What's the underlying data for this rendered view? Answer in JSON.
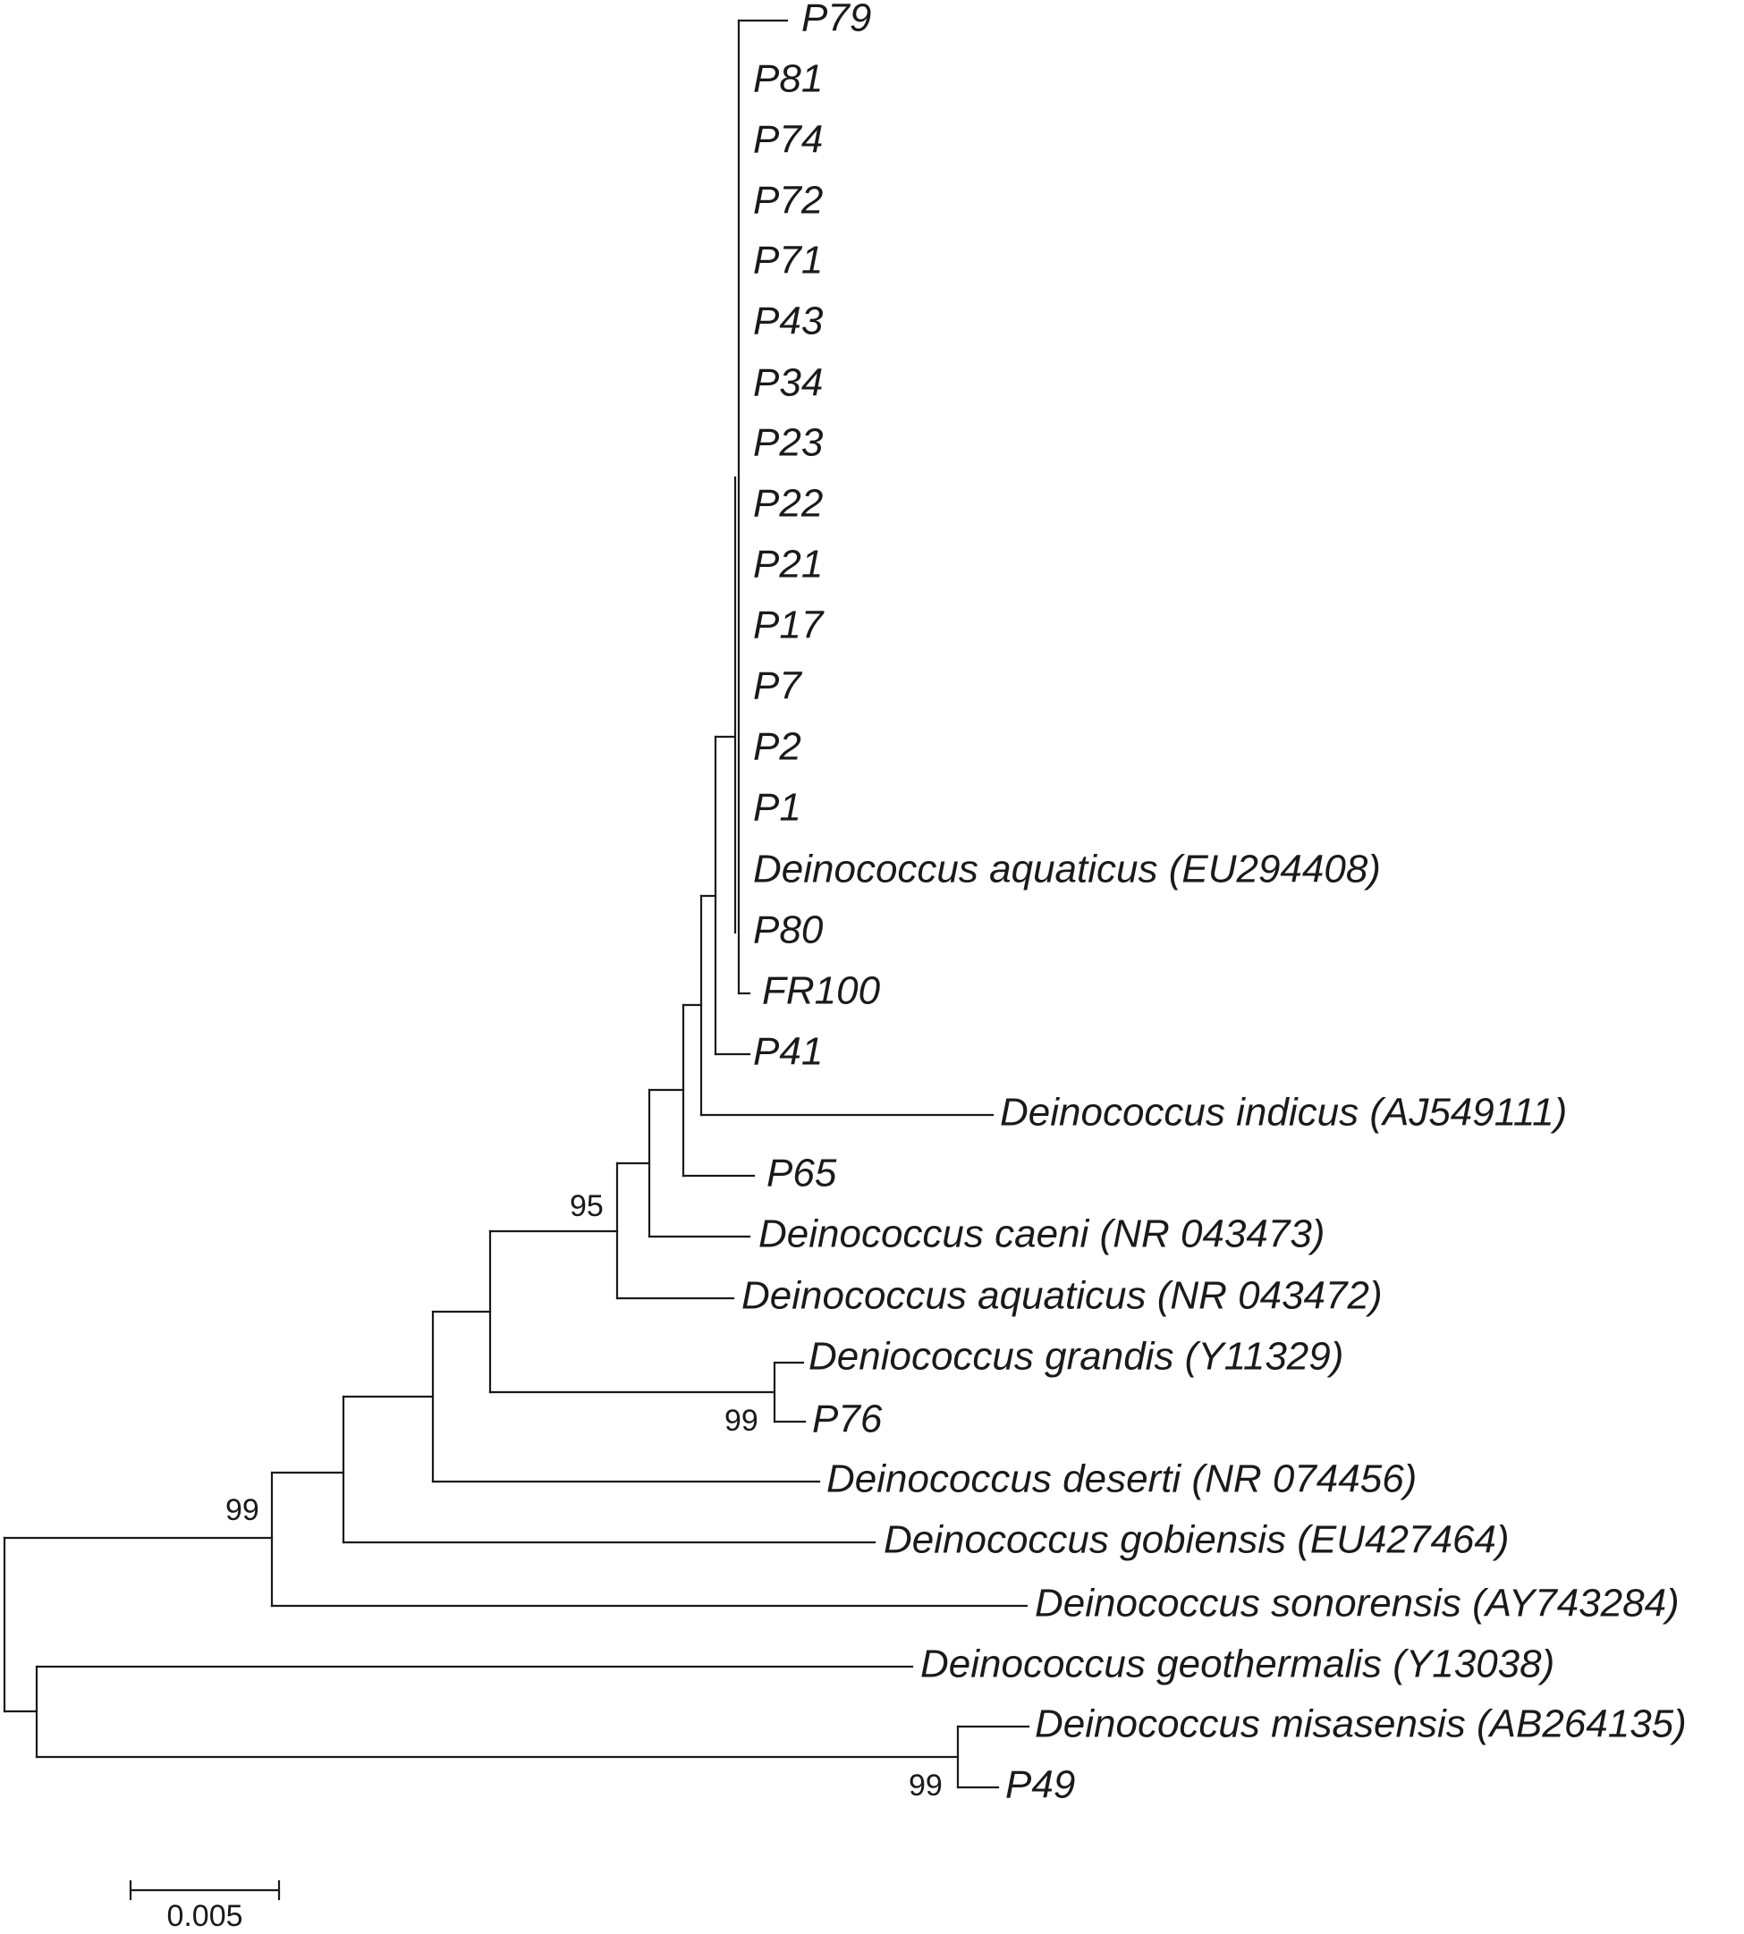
{
  "tree": {
    "taxa": [
      {
        "id": "P79",
        "label": "P79"
      },
      {
        "id": "P81",
        "label": "P81"
      },
      {
        "id": "P74",
        "label": "P74"
      },
      {
        "id": "P72",
        "label": "P72"
      },
      {
        "id": "P71",
        "label": "P71"
      },
      {
        "id": "P43",
        "label": "P43"
      },
      {
        "id": "P34",
        "label": "P34"
      },
      {
        "id": "P23",
        "label": "P23"
      },
      {
        "id": "P22",
        "label": "P22"
      },
      {
        "id": "P21",
        "label": "P21"
      },
      {
        "id": "P17",
        "label": "P17"
      },
      {
        "id": "P7",
        "label": "P7"
      },
      {
        "id": "P2",
        "label": "P2"
      },
      {
        "id": "P1",
        "label": "P1"
      },
      {
        "id": "DaqEU",
        "label": "Deinococcus aquaticus (EU294408)"
      },
      {
        "id": "P80",
        "label": "P80"
      },
      {
        "id": "FR100",
        "label": "FR100"
      },
      {
        "id": "P41",
        "label": "P41"
      },
      {
        "id": "Dind",
        "label": "Deinococcus indicus (AJ549111)"
      },
      {
        "id": "P65",
        "label": "P65"
      },
      {
        "id": "Dcae",
        "label": "Deinococcus caeni (NR 043473)"
      },
      {
        "id": "DaqNR",
        "label": "Deinococcus aquaticus (NR 043472)"
      },
      {
        "id": "Dgra",
        "label": "Deniococcus grandis (Y11329)"
      },
      {
        "id": "P76",
        "label": "P76"
      },
      {
        "id": "Ddes",
        "label": "Deinococcus deserti (NR 074456)"
      },
      {
        "id": "Dgob",
        "label": "Deinococcus gobiensis (EU427464)"
      },
      {
        "id": "Dson",
        "label": "Deinococcus sonorensis (AY743284)"
      },
      {
        "id": "Dgeo",
        "label": "Deinococcus geothermalis (Y13038)"
      },
      {
        "id": "Dmis",
        "label": "Deinococcus misasensis (AB264135)"
      },
      {
        "id": "P49",
        "label": "P49"
      }
    ],
    "bootstrap": [
      {
        "node": "aquaticus-caeni-clade",
        "value": "95"
      },
      {
        "node": "grandis-P76",
        "value": "99"
      },
      {
        "node": "main-clade",
        "value": "99"
      },
      {
        "node": "misasensis-P49",
        "value": "99"
      }
    ],
    "scale_bar": {
      "length": 0.005,
      "label": "0.005"
    }
  }
}
